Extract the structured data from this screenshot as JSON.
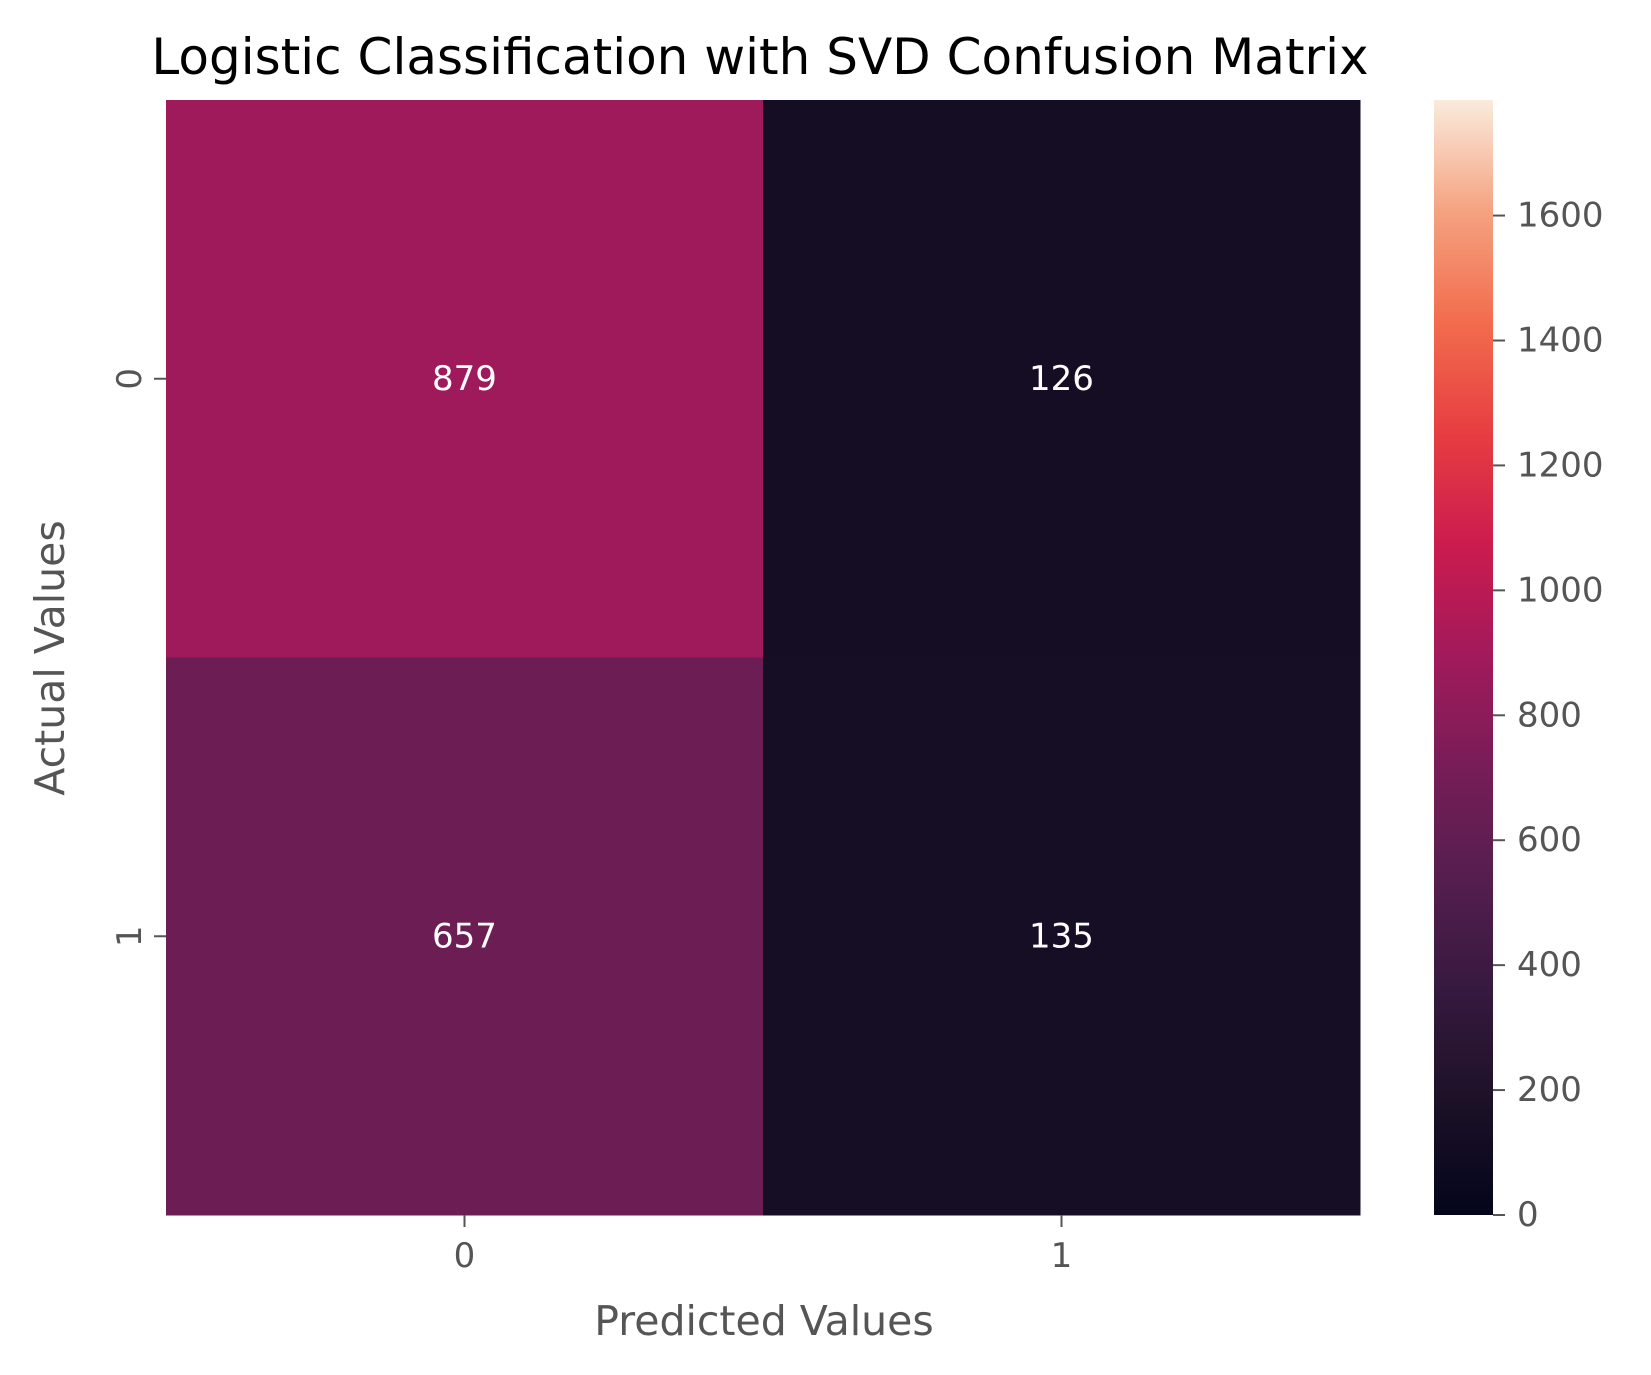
{
  "chart_data": {
    "type": "heatmap",
    "title": "Logistic Classification with SVD Confusion Matrix",
    "xlabel": "Predicted Values",
    "ylabel": "Actual Values",
    "x_categories": [
      "0",
      "1"
    ],
    "y_categories": [
      "0",
      "1"
    ],
    "values": [
      [
        879,
        126
      ],
      [
        657,
        135
      ]
    ],
    "colormap": "rocket",
    "colorbar": {
      "range": [
        0,
        1785
      ],
      "ticks": [
        0,
        200,
        400,
        600,
        800,
        1000,
        1200,
        1400,
        1600
      ],
      "tick_labels": [
        "0",
        "200",
        "400",
        "600",
        "800",
        "1000",
        "1200",
        "1400",
        "1600"
      ]
    },
    "cell_text_color": "#ffffff",
    "grid": false,
    "legend": "colorbar-right"
  }
}
